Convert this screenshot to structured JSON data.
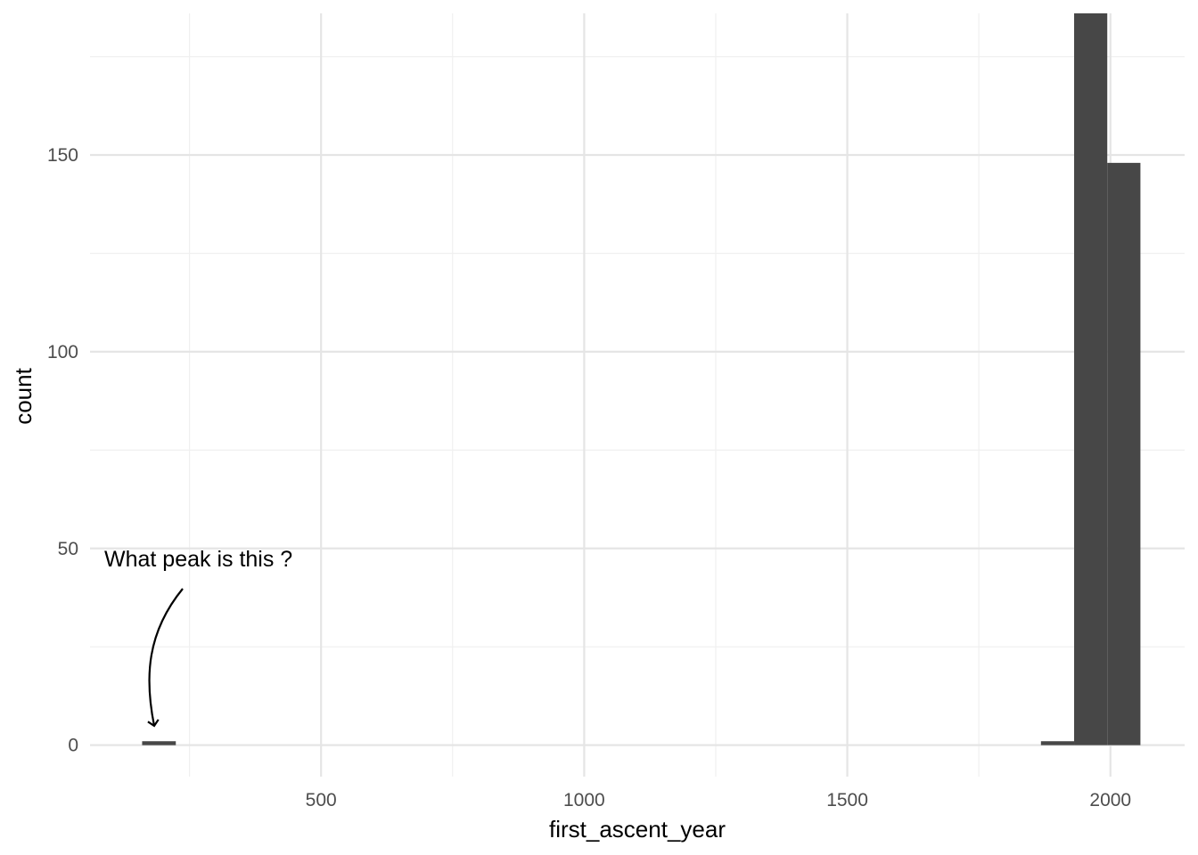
{
  "chart_data": {
    "type": "bar",
    "subtype": "histogram",
    "title": "",
    "xlabel": "first_ascent_year",
    "ylabel": "count",
    "xlim": [
      61,
      2141
    ],
    "ylim": [
      -8,
      186
    ],
    "x_ticks": [
      500,
      1000,
      1500,
      2000
    ],
    "y_ticks": [
      0,
      50,
      100,
      150
    ],
    "x_tick_labels": [
      "500",
      "1000",
      "1500",
      "2000"
    ],
    "y_tick_labels": [
      "0",
      "50",
      "100",
      "150"
    ],
    "grid": true,
    "legend": "none",
    "bar_color": "#474747",
    "bins": [
      {
        "x_start": 160,
        "x_end": 224,
        "count": 1
      },
      {
        "x_start": 1868,
        "x_end": 1931,
        "count": 1
      },
      {
        "x_start": 1931,
        "x_end": 1994,
        "count": 186
      },
      {
        "x_start": 1994,
        "x_end": 2057,
        "count": 148
      }
    ],
    "annotation": {
      "text": "What peak is this ?",
      "points_to_bin": 0
    }
  }
}
